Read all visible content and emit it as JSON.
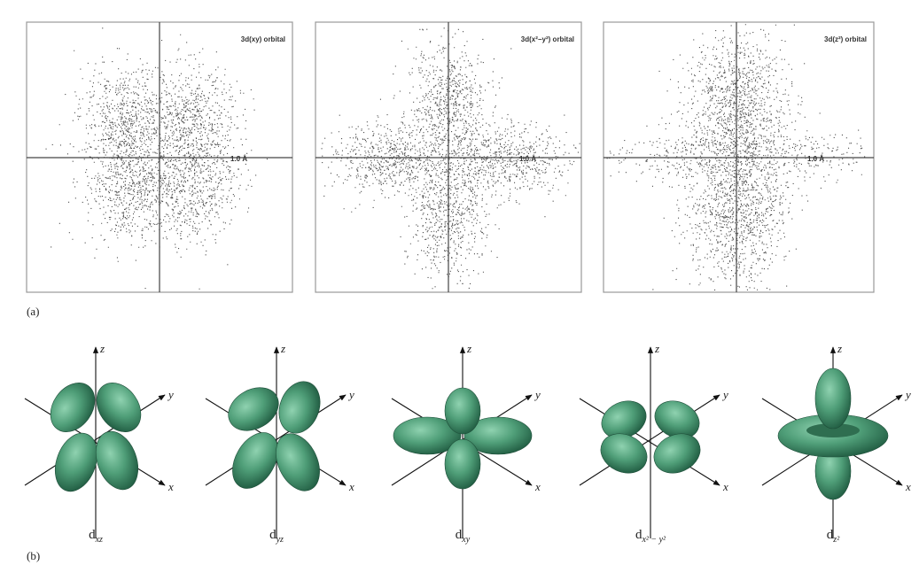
{
  "figure": {
    "part_a": {
      "label": "(a)",
      "panels": [
        {
          "title": "3d(xy) orbital",
          "scale": "1.0 Å"
        },
        {
          "title": "3d(x²−y²) orbital",
          "scale": "1.0 Å"
        },
        {
          "title": "3d(z²) orbital",
          "scale": "1.0 Å"
        }
      ]
    },
    "part_b": {
      "label": "(b)",
      "axis_labels": {
        "x": "x",
        "y": "y",
        "z": "z"
      },
      "orbitals": [
        {
          "name": "d",
          "sub": "xz"
        },
        {
          "name": "d",
          "sub": "yz"
        },
        {
          "name": "d",
          "sub": "xy"
        },
        {
          "name": "d",
          "sub": "x² − y²"
        },
        {
          "name": "d",
          "sub": "z²"
        }
      ]
    }
  }
}
